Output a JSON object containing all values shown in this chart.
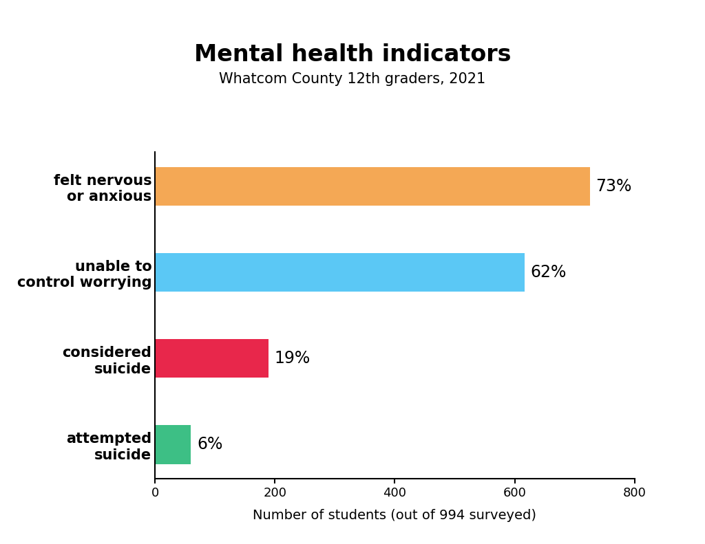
{
  "title": "Mental health indicators",
  "subtitle": "Whatcom County 12th graders, 2021",
  "xlabel": "Number of students (out of 994 surveyed)",
  "categories": [
    "felt nervous\nor anxious",
    "unable to\ncontrol worrying",
    "considered\nsuicide",
    "attempted\nsuicide"
  ],
  "values": [
    725.62,
    616.28,
    188.86,
    59.64
  ],
  "percentages": [
    "73%",
    "62%",
    "19%",
    "6%"
  ],
  "colors": [
    "#F4A855",
    "#5BC8F5",
    "#E8274B",
    "#3DBF85"
  ],
  "xlim": [
    0,
    800
  ],
  "xticks": [
    0,
    200,
    400,
    600,
    800
  ],
  "background_color": "#FFFFFF",
  "title_fontsize": 24,
  "subtitle_fontsize": 15,
  "xlabel_fontsize": 14,
  "label_fontsize": 15,
  "pct_fontsize": 17
}
